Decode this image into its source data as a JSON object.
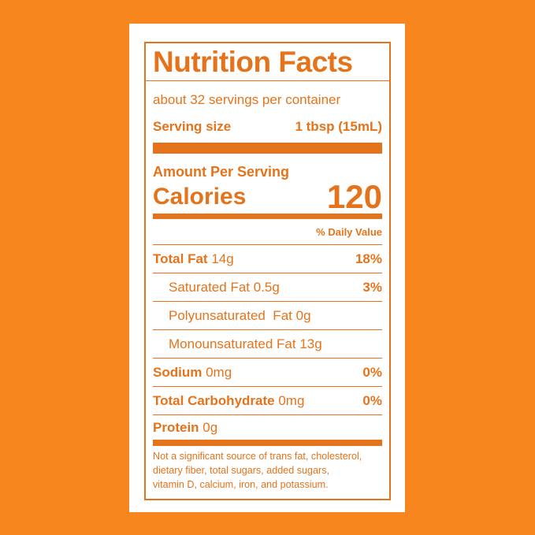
{
  "header": {
    "title": "Nutrition Facts",
    "servings": "about 32 servings per container",
    "serving_size_label": "Serving size",
    "serving_size": "1 tbsp (15mL)"
  },
  "calories": {
    "amount_per_serving": "Amount Per Serving",
    "label": "Calories",
    "value": "120"
  },
  "daily_value_header": "% Daily Value",
  "rows": [
    {
      "name": "Total Fat",
      "amount": "14g",
      "dv": "18%"
    },
    {
      "name": "Saturated Fat",
      "amount": "0.5g",
      "dv": "3%"
    },
    {
      "name": "Polyunsaturated  Fat",
      "amount": "0g"
    },
    {
      "name": "Monounsaturated Fat",
      "amount": "13g"
    },
    {
      "name": "Sodium",
      "amount": "0mg",
      "dv": "0%"
    },
    {
      "name": "Total Carbohydrate",
      "amount": "0mg",
      "dv": "0%"
    },
    {
      "name": "Protein",
      "amount": "0g"
    }
  ],
  "footnote": [
    "Not a significant source of trans fat, cholesterol,",
    "dietary fiber, total sugars, added sugars,",
    "vitamin D, calcium, iron, and potassium."
  ]
}
